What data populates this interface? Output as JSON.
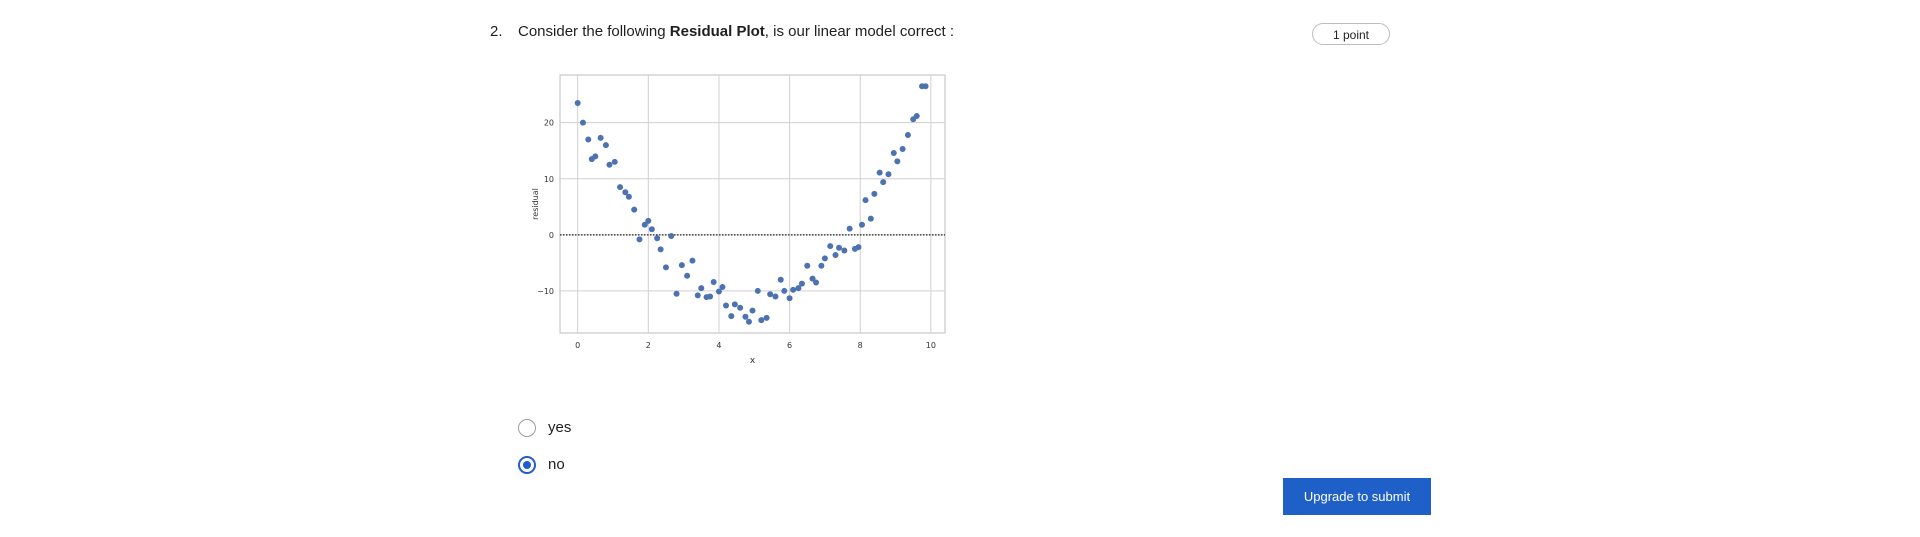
{
  "question": {
    "number": "2.",
    "text_before": "Consider the following ",
    "text_bold": "Residual Plot",
    "text_after": ", is our linear model correct :",
    "points": "1 point"
  },
  "options": [
    {
      "label": "yes",
      "selected": false
    },
    {
      "label": "no",
      "selected": true
    }
  ],
  "submit": {
    "label": "Upgrade to submit"
  },
  "colors": {
    "accent": "#1f5fc8",
    "marker": "#4c72b0"
  },
  "chart_data": {
    "type": "scatter",
    "xlabel": "x",
    "ylabel": "residual",
    "xlim": [
      -0.5,
      10.4
    ],
    "ylim": [
      -17.5,
      28.5
    ],
    "xticks": [
      "0",
      "2",
      "4",
      "6",
      "8",
      "10"
    ],
    "yticks": [
      "20",
      "10",
      "0",
      "−10"
    ],
    "xtick_values": [
      0,
      2,
      4,
      6,
      8,
      10
    ],
    "ytick_values": [
      20,
      10,
      0,
      -10
    ],
    "grid": true,
    "reference_line": 0,
    "x": [
      0,
      0.15,
      0.3,
      0.4,
      0.5,
      0.65,
      0.8,
      0.9,
      1.05,
      1.2,
      1.35,
      1.45,
      1.6,
      1.75,
      1.9,
      2.0,
      2.1,
      2.25,
      2.35,
      2.5,
      2.65,
      2.8,
      2.95,
      3.1,
      3.25,
      3.4,
      3.5,
      3.65,
      3.75,
      3.85,
      4.0,
      4.1,
      4.2,
      4.35,
      4.45,
      4.6,
      4.75,
      4.85,
      4.95,
      5.1,
      5.2,
      5.35,
      5.45,
      5.6,
      5.75,
      5.85,
      6.0,
      6.1,
      6.25,
      6.35,
      6.5,
      6.65,
      6.75,
      6.9,
      7.0,
      7.15,
      7.3,
      7.4,
      7.55,
      7.7,
      7.85,
      7.95,
      8.05,
      8.15,
      8.3,
      8.4,
      8.55,
      8.65,
      8.8,
      8.95,
      9.05,
      9.2,
      9.35,
      9.5,
      9.6,
      9.75,
      9.85
    ],
    "y": [
      23.5,
      20,
      17,
      13.5,
      14,
      17.3,
      16,
      12.5,
      13,
      8.5,
      7.6,
      6.8,
      4.5,
      -0.8,
      1.8,
      2.5,
      1,
      -0.6,
      -2.6,
      -5.8,
      -0.2,
      -10.5,
      -5.4,
      -7.3,
      -4.6,
      -10.8,
      -9.5,
      -11.1,
      -11,
      -8.4,
      -10.1,
      -9.3,
      -12.6,
      -14.5,
      -12.4,
      -13,
      -14.6,
      -15.5,
      -13.5,
      -10,
      -15.2,
      -14.8,
      -10.6,
      -11,
      -8,
      -10,
      -11.3,
      -9.8,
      -9.5,
      -8.7,
      -5.5,
      -7.8,
      -8.5,
      -5.5,
      -4.2,
      -2,
      -3.6,
      -2.3,
      -2.8,
      1.1,
      -2.5,
      -2.2,
      1.8,
      6.2,
      2.9,
      7.3,
      11.1,
      9.4,
      10.8,
      14.6,
      13.1,
      15.3,
      17.8,
      20.6,
      21.2,
      26.5,
      26.5
    ]
  }
}
